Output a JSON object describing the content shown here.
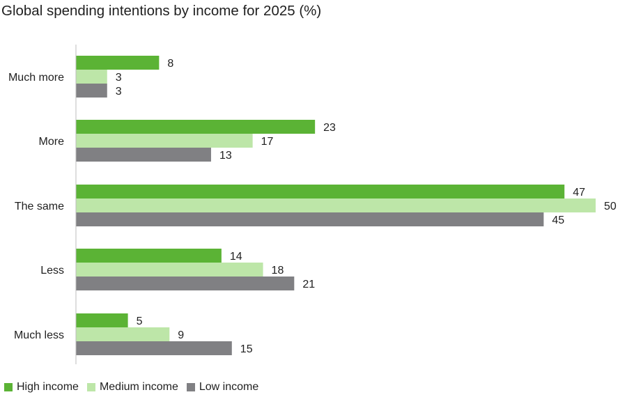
{
  "chart_data": {
    "type": "bar",
    "orientation": "horizontal",
    "title": "Global spending intentions by income for 2025 (%)",
    "categories": [
      "Much more",
      "More",
      "The same",
      "Less",
      "Much less"
    ],
    "series": [
      {
        "name": "High income",
        "color": "#5bb335",
        "values": [
          8,
          23,
          47,
          14,
          5
        ]
      },
      {
        "name": "Medium income",
        "color": "#bde6a8",
        "values": [
          3,
          17,
          50,
          18,
          9
        ]
      },
      {
        "name": "Low income",
        "color": "#808083",
        "values": [
          3,
          13,
          45,
          21,
          15
        ]
      }
    ],
    "xlim": [
      0,
      50
    ],
    "grid": false,
    "legend_position": "bottom-left",
    "data_labels": true
  }
}
